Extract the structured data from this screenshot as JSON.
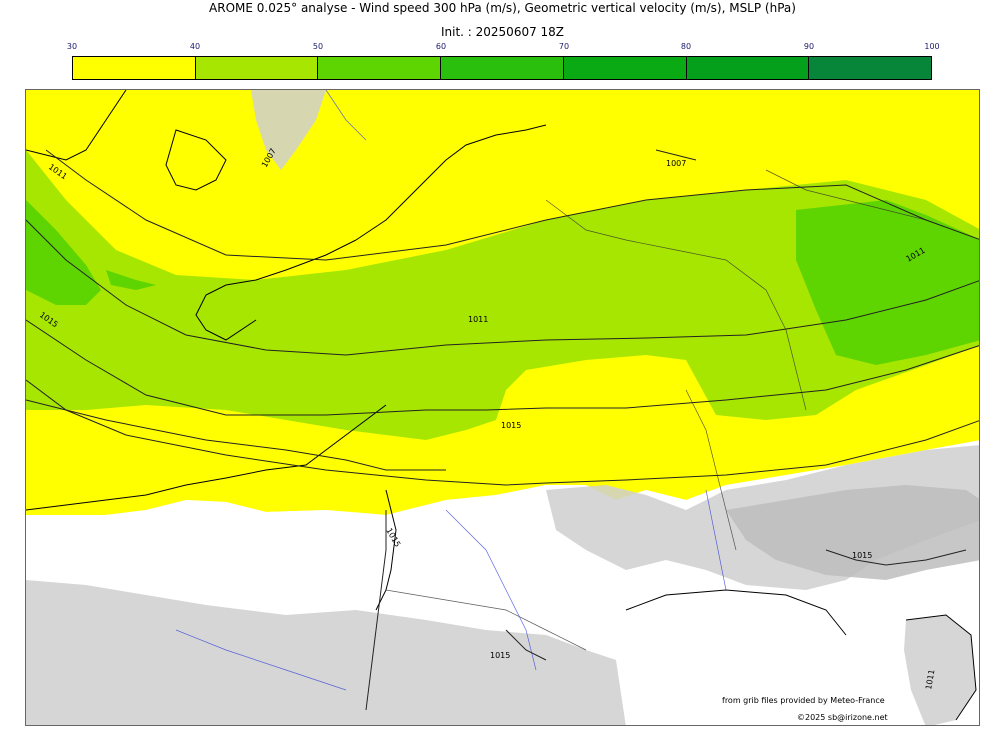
{
  "header": {
    "title": "AROME 0.025° analyse - Wind speed 300 hPa (m/s), Geometric vertical velocity (m/s), MSLP (hPa)",
    "init": "Init. : 20250607 18Z"
  },
  "colorbar": {
    "ticks": [
      "30",
      "40",
      "50",
      "60",
      "70",
      "80",
      "90",
      "100"
    ],
    "colors": [
      "#ffff00",
      "#a6e600",
      "#5ed400",
      "#29bf0c",
      "#0aaa14",
      "#04a01c",
      "#07863a",
      "#0a7a52"
    ]
  },
  "map": {
    "isobar_labels": [
      "1011",
      "1007",
      "1015",
      "1011",
      "1015",
      "1011",
      "1007",
      "1015",
      "1015",
      "1015",
      "1011"
    ]
  },
  "credits": {
    "source": "from grib files provided by Meteo-France",
    "copyright": "©2025 sb@irizone.net"
  }
}
